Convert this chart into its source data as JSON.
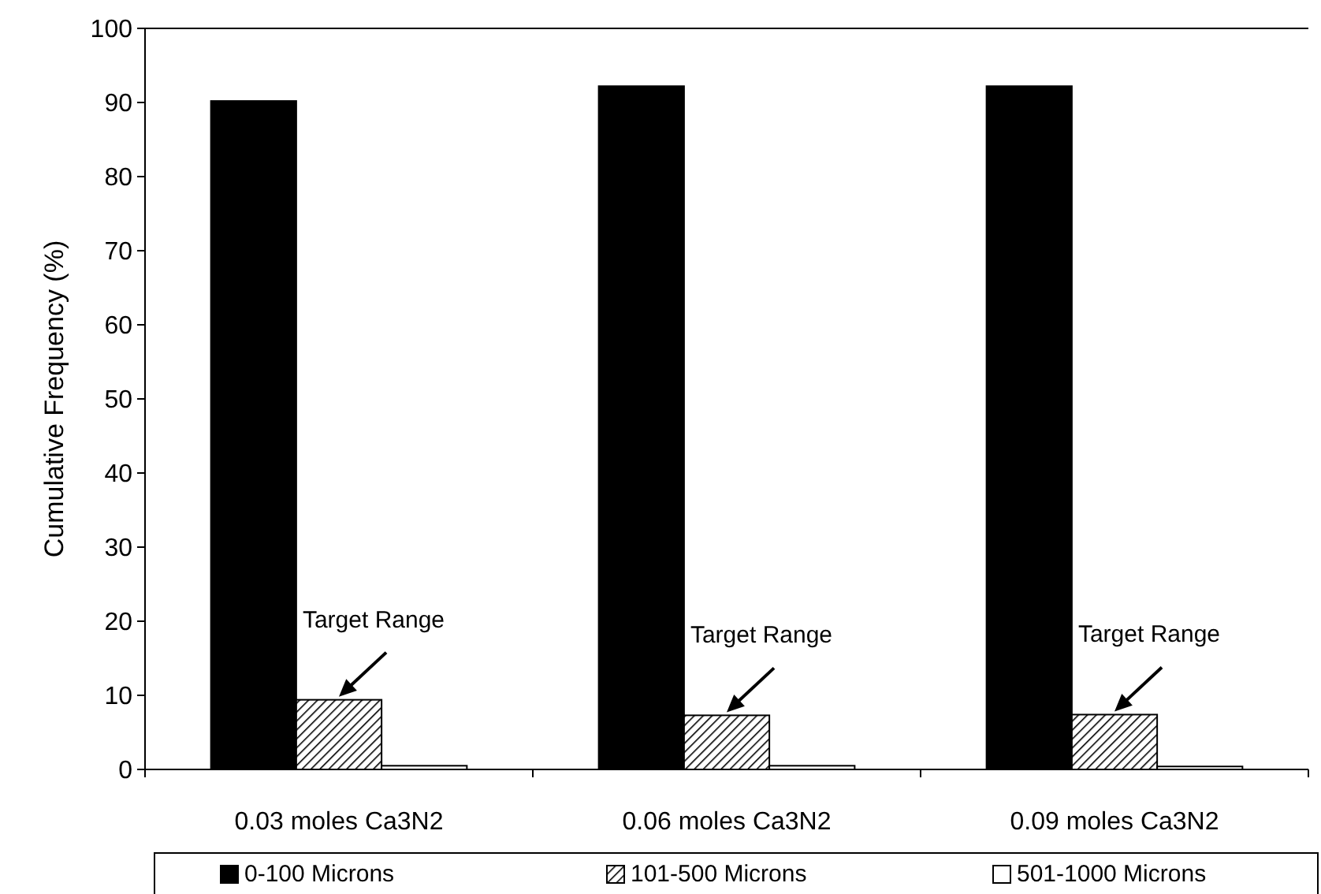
{
  "chart_data": {
    "type": "bar",
    "ylabel": "Cumulative Frequency (%)",
    "categories": [
      "0.03 moles Ca3N2",
      "0.06 moles Ca3N2",
      "0.09 moles Ca3N2"
    ],
    "series": [
      {
        "name": "0-100 Microns",
        "color": "#000000",
        "values": [
          90.2,
          92.2,
          92.2
        ]
      },
      {
        "name": "101-500 Microns",
        "color": "#000000",
        "values": [
          9.4,
          7.3,
          7.4
        ]
      },
      {
        "name": "501-1000 Microns",
        "color": "#ffffff",
        "values": [
          0.5,
          0.5,
          0.4
        ]
      }
    ],
    "ylim": [
      0,
      100
    ],
    "yticks": [
      0,
      10,
      20,
      30,
      40,
      50,
      60,
      70,
      80,
      90,
      100
    ],
    "grid": false,
    "legend": "bottom",
    "annotations": [
      {
        "text": "Target Range",
        "x": "0.03 moles Ca3N2",
        "y": 9.4
      },
      {
        "text": "Target Range",
        "x": "0.06 moles Ca3N2",
        "y": 7.3
      },
      {
        "text": "Target Range",
        "x": "0.09 moles Ca3N2",
        "y": 7.4
      }
    ]
  }
}
